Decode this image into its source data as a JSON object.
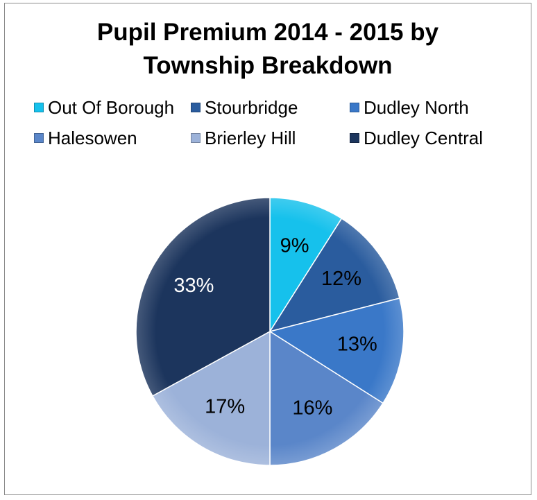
{
  "chart_data": {
    "type": "pie",
    "title_line1": "Pupil Premium 2014 - 2015 by",
    "title_line2": "Township Breakdown",
    "legend_position": "top",
    "categories": [
      "Out Of Borough",
      "Stourbridge",
      "Dudley North",
      "Halesowen",
      "Brierley Hill",
      "Dudley Central"
    ],
    "values": [
      9,
      12,
      13,
      16,
      17,
      33
    ],
    "labels": [
      "9%",
      "12%",
      "13%",
      "16%",
      "17%",
      "33%"
    ],
    "colors": [
      "#16c1ec",
      "#2a5c9e",
      "#3a78c8",
      "#5a86c9",
      "#9cb2d9",
      "#1c355d"
    ],
    "label_colors": [
      "#000000",
      "#000000",
      "#000000",
      "#000000",
      "#000000",
      "#ffffff"
    ]
  }
}
